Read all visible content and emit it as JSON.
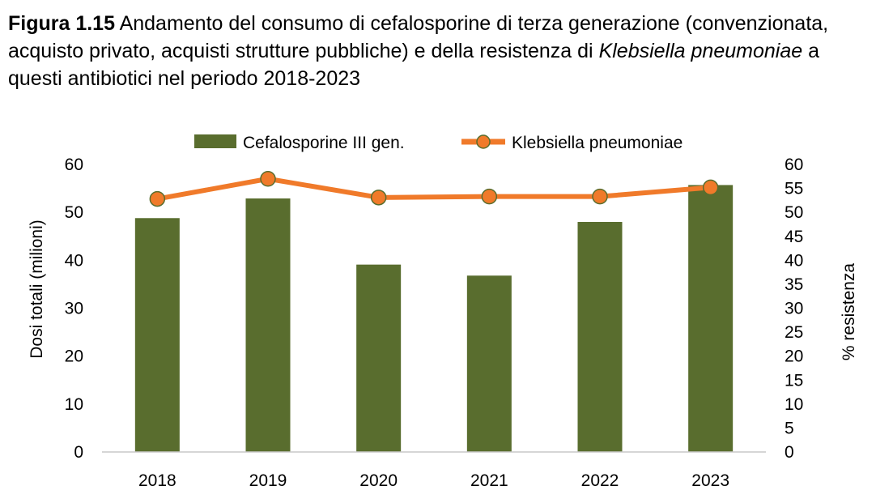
{
  "caption": {
    "label": "Figura 1.15",
    "text_before": " Andamento del consumo di cefalosporine di terza generazione (convenzionata, acquisto privato, acquisti strutture pubbliche) e della resistenza di ",
    "species": "Klebsiella pneumoniae",
    "text_after": " a questi antibiotici nel periodo 2018-2023"
  },
  "chart_data": {
    "type": "bar",
    "categories": [
      "2018",
      "2019",
      "2020",
      "2021",
      "2022",
      "2023"
    ],
    "series": [
      {
        "name": "Cefalosporine III gen.",
        "type": "bar",
        "axis": "left",
        "values": [
          48.8,
          52.9,
          39.1,
          36.8,
          48.0,
          55.7
        ],
        "color": "#596d2e"
      },
      {
        "name": "Klebsiella pneumoniae",
        "type": "line",
        "axis": "right",
        "values": [
          52.8,
          57.0,
          53.1,
          53.3,
          53.3,
          55.2
        ],
        "color": "#f07a2a"
      }
    ],
    "ylabel": "Dosi totali (milioni)",
    "ylim": [
      0,
      60
    ],
    "yticks": [
      "0",
      "10",
      "20",
      "30",
      "40",
      "50",
      "60"
    ],
    "y2label": "% resistenza",
    "y2lim": [
      0,
      60
    ],
    "y2ticks": [
      "0",
      "5",
      "10",
      "15",
      "20",
      "25",
      "30",
      "35",
      "40",
      "45",
      "50",
      "55",
      "60"
    ],
    "grid": false,
    "legend_position": "top"
  }
}
